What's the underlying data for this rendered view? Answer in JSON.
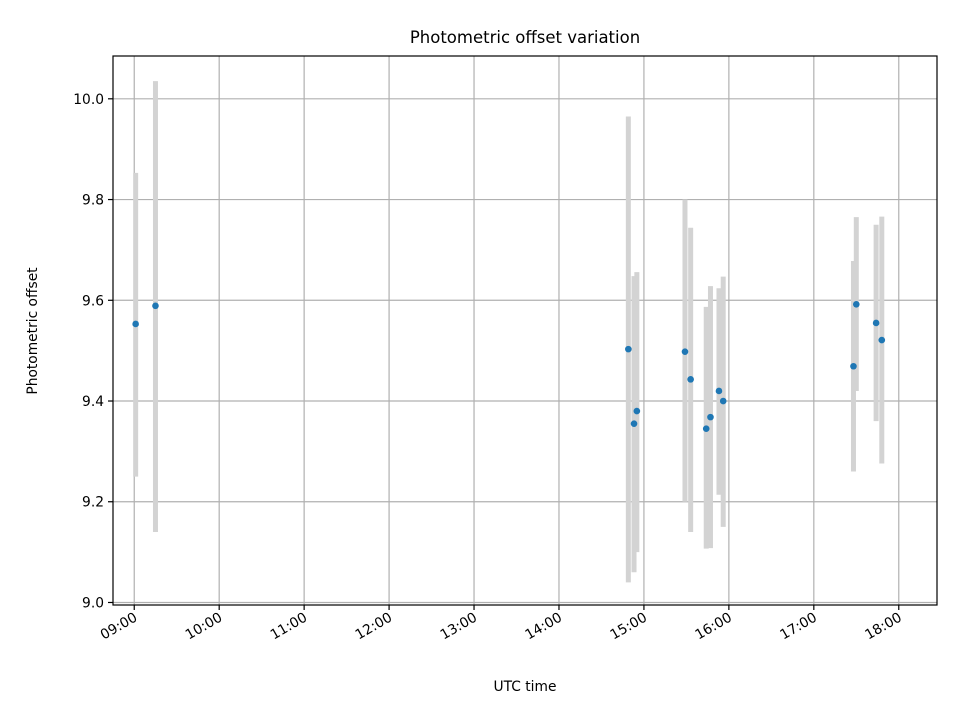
{
  "chart_data": {
    "type": "scatter",
    "title": "Photometric offset variation",
    "xlabel": "UTC time",
    "ylabel": "Photometric offset",
    "x_ticks": [
      "09:00",
      "10:00",
      "11:00",
      "12:00",
      "13:00",
      "14:00",
      "15:00",
      "16:00",
      "17:00",
      "18:00"
    ],
    "y_ticks": [
      "9.0",
      "9.2",
      "9.4",
      "9.6",
      "9.8",
      "10.0"
    ],
    "xlim": [
      "08:45",
      "18:27"
    ],
    "ylim": [
      8.995,
      10.085
    ],
    "grid": true,
    "colors": {
      "point": "#1f77b4",
      "errorbar": "#d3d3d3",
      "grid": "#b0b0b0"
    },
    "points": [
      {
        "time": "09:01",
        "y": 9.553,
        "yerr_low": 9.25,
        "yerr_high": 9.853
      },
      {
        "time": "09:15",
        "y": 9.589,
        "yerr_low": 9.14,
        "yerr_high": 10.035
      },
      {
        "time": "14:49",
        "y": 9.503,
        "yerr_low": 9.04,
        "yerr_high": 9.965
      },
      {
        "time": "14:53",
        "y": 9.355,
        "yerr_low": 9.06,
        "yerr_high": 9.648
      },
      {
        "time": "14:55",
        "y": 9.38,
        "yerr_low": 9.1,
        "yerr_high": 9.656
      },
      {
        "time": "15:29",
        "y": 9.498,
        "yerr_low": 9.2,
        "yerr_high": 9.8
      },
      {
        "time": "15:33",
        "y": 9.443,
        "yerr_low": 9.14,
        "yerr_high": 9.744
      },
      {
        "time": "15:44",
        "y": 9.345,
        "yerr_low": 9.107,
        "yerr_high": 9.587
      },
      {
        "time": "15:47",
        "y": 9.368,
        "yerr_low": 9.108,
        "yerr_high": 9.628
      },
      {
        "time": "15:53",
        "y": 9.42,
        "yerr_low": 9.214,
        "yerr_high": 9.624
      },
      {
        "time": "15:56",
        "y": 9.4,
        "yerr_low": 9.15,
        "yerr_high": 9.647
      },
      {
        "time": "17:28",
        "y": 9.469,
        "yerr_low": 9.26,
        "yerr_high": 9.678
      },
      {
        "time": "17:30",
        "y": 9.592,
        "yerr_low": 9.42,
        "yerr_high": 9.765
      },
      {
        "time": "17:44",
        "y": 9.555,
        "yerr_low": 9.36,
        "yerr_high": 9.75
      },
      {
        "time": "17:48",
        "y": 9.521,
        "yerr_low": 9.276,
        "yerr_high": 9.766
      }
    ]
  }
}
